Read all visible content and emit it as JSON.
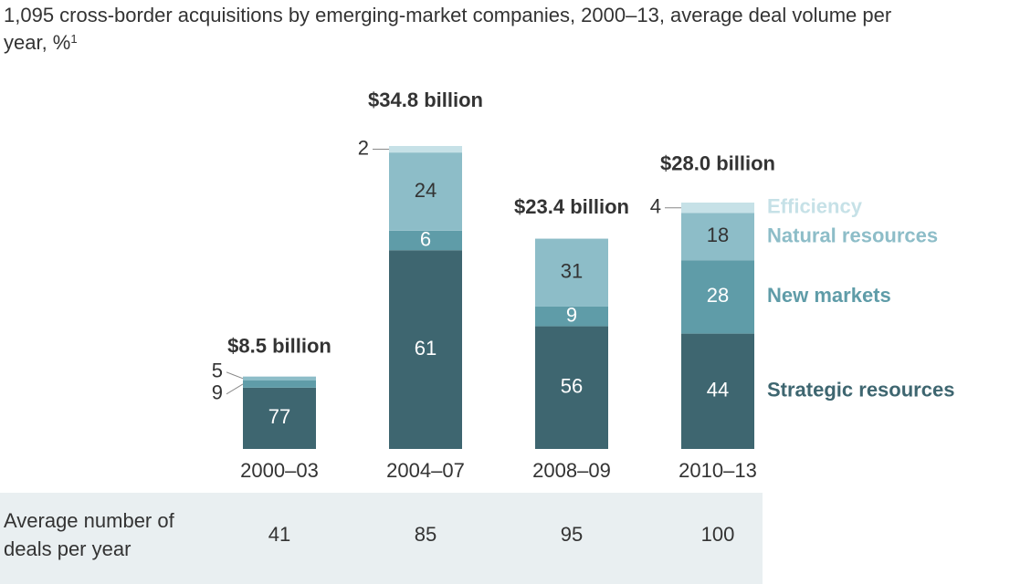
{
  "chart_data": {
    "type": "stacked-bar",
    "title": "1,095 cross-border acquisitions by emerging-market companies, 2000–13, average deal volume per year, %",
    "title_note": "1",
    "categories": [
      "2000–03",
      "2004–07",
      "2008–09",
      "2010–13"
    ],
    "totals": {
      "values": [
        8.5,
        34.8,
        23.4,
        28.0
      ],
      "value_labels": [
        "$8.5 billion",
        "$34.8 billion",
        "$23.4 billion",
        "$28.0 billion"
      ]
    },
    "series": [
      {
        "name": "Strategic resources",
        "color": "#3e6670",
        "values": [
          77,
          61,
          56,
          44
        ]
      },
      {
        "name": "New markets",
        "color": "#5f9ca8",
        "values": [
          9,
          6,
          9,
          28
        ]
      },
      {
        "name": "Natural resources",
        "color": "#8dbdc8",
        "values": [
          5,
          24,
          31,
          18
        ]
      },
      {
        "name": "Efficiency",
        "color": "#c6e1e7",
        "values": [
          null,
          2,
          null,
          4
        ]
      }
    ],
    "table": {
      "row_label": "Average number of deals per year",
      "values": [
        41,
        85,
        95,
        100
      ]
    }
  }
}
